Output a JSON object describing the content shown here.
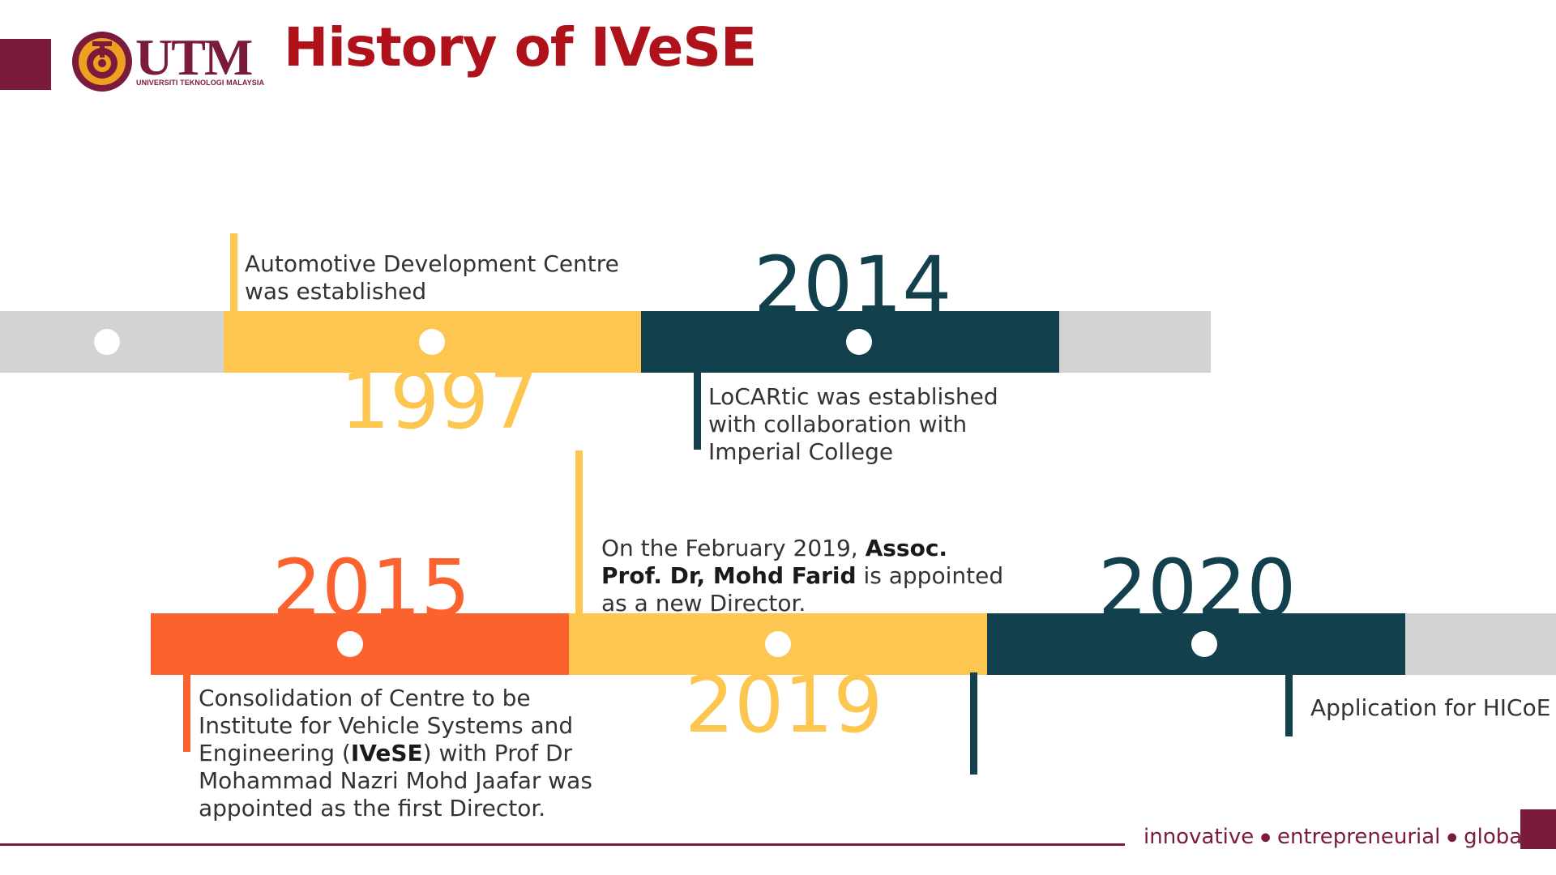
{
  "header": {
    "title": "History of IVeSE",
    "logo_text": "UTM",
    "logo_subtitle": "UNIVERSITI TEKNOLOGI MALAYSIA"
  },
  "colors": {
    "maroon": "#7a1a3c",
    "title_red": "#b0121b",
    "yellow": "#fcc650",
    "teal": "#12414d",
    "orange": "#fc622d",
    "gray": "#d3d3d3"
  },
  "timeline": {
    "y1997": {
      "year": "1997",
      "desc": "Automotive Development Centre was established"
    },
    "y2014": {
      "year": "2014",
      "desc": "LoCARtic was established with collaboration with Imperial College"
    },
    "y2015": {
      "year": "2015",
      "desc_pre": "Consolidation of Centre to be Institute for Vehicle Systems and Engineering (",
      "desc_bold": "IVeSE",
      "desc_post": ") with Prof Dr Mohammad Nazri Mohd Jaafar was appointed as the first Director."
    },
    "y2019": {
      "year": "2019",
      "desc_pre": "On the February 2019, ",
      "desc_bold": "Assoc. Prof. Dr, Mohd Farid",
      "desc_post": " is appointed as a new Director."
    },
    "y2020": {
      "year": "2020",
      "desc": "Application for HICoE"
    }
  },
  "footer": {
    "w1": "innovative",
    "w2": "entrepreneurial",
    "w3": "global",
    "bullet": "●"
  }
}
